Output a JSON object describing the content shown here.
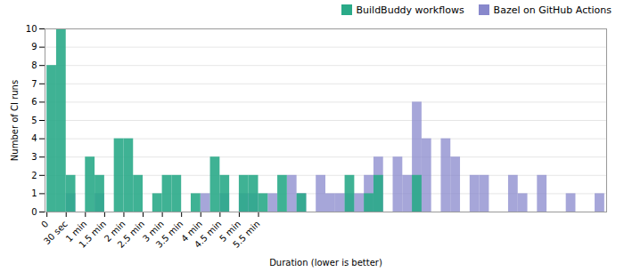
{
  "chart_data": {
    "type": "histogram",
    "xlabel": "Duration (lower is better)",
    "ylabel": "Number of CI runs",
    "bins": [
      0,
      15,
      30,
      45,
      60,
      75,
      90,
      105,
      120,
      135,
      150,
      165,
      180,
      195,
      210,
      225,
      240,
      255,
      270,
      285,
      300,
      315,
      330,
      345,
      360,
      375,
      390,
      405,
      420,
      435,
      450,
      465,
      480,
      495,
      510,
      525,
      540,
      555,
      570,
      585,
      600,
      615,
      630,
      645,
      660,
      675,
      690,
      705,
      720,
      735,
      750,
      765,
      780,
      795,
      810,
      825,
      840,
      855,
      870
    ],
    "series": [
      {
        "name": "BuildBuddy workflows",
        "color": "#2aaa88",
        "values": [
          8,
          10,
          2,
          0,
          3,
          2,
          0,
          4,
          4,
          2,
          0,
          1,
          2,
          2,
          0,
          1,
          0,
          3,
          2,
          0,
          2,
          2,
          1,
          0,
          2,
          0,
          1,
          0,
          0,
          0,
          0,
          2,
          0,
          1,
          2,
          0,
          0,
          0,
          2,
          0,
          0,
          0,
          0,
          0,
          0,
          0,
          0,
          0,
          0,
          0,
          0,
          0,
          0,
          0,
          0,
          0,
          0,
          0
        ]
      },
      {
        "name": "Bazel on GitHub Actions",
        "color": "#8888cc",
        "values": [
          0,
          0,
          1,
          0,
          0,
          1,
          0,
          0,
          0,
          0,
          0,
          0,
          0,
          0,
          0,
          0,
          1,
          0,
          1,
          0,
          1,
          1,
          0,
          1,
          0,
          2,
          1,
          0,
          2,
          1,
          1,
          1,
          1,
          2,
          3,
          0,
          3,
          2,
          6,
          4,
          0,
          4,
          3,
          0,
          2,
          2,
          0,
          0,
          2,
          1,
          0,
          2,
          0,
          0,
          1,
          0,
          0,
          1
        ]
      }
    ],
    "xlim": [
      -3,
      873
    ],
    "xticks": [
      0,
      {
        "value": 30,
        "label": "30 sec"
      },
      {
        "value": 60,
        "label": "1 min"
      },
      {
        "value": 90,
        "label": "1.5 min"
      },
      {
        "value": 120,
        "label": "2 min"
      },
      {
        "value": 150,
        "label": "2.5 min"
      },
      {
        "value": 180,
        "label": "3 min"
      },
      {
        "value": 210,
        "label": "3.5 min"
      },
      {
        "value": 240,
        "label": "4 min"
      },
      {
        "value": 270,
        "label": "4.5 min"
      },
      {
        "value": 300,
        "label": "5 min"
      },
      {
        "value": 330,
        "label": "5.5 min"
      }
    ],
    "ylim": [
      0,
      10
    ],
    "yticks": [
      0,
      1,
      2,
      3,
      4,
      5,
      6,
      7,
      8,
      9,
      10
    ],
    "grid": true,
    "legend": "upper right"
  }
}
